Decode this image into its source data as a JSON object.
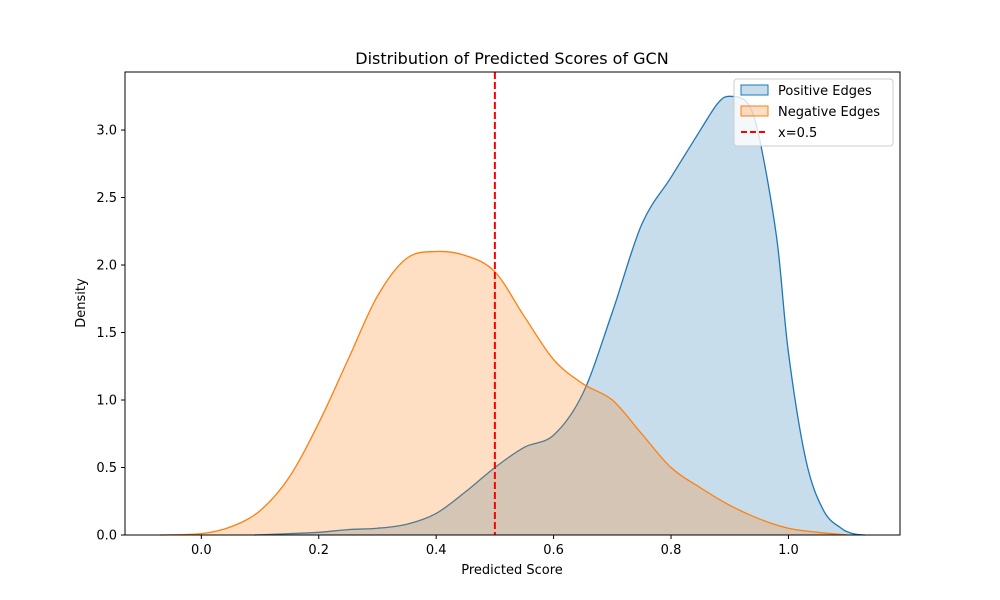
{
  "chart_data": {
    "type": "area",
    "title": "Distribution of Predicted Scores of GCN",
    "xlabel": "Predicted Score",
    "ylabel": "Density",
    "xlim": [
      -0.13,
      1.19
    ],
    "ylim": [
      0.0,
      3.43
    ],
    "xticks": [
      "0.0",
      "0.2",
      "0.4",
      "0.6",
      "0.8",
      "1.0"
    ],
    "yticks": [
      "0.0",
      "0.5",
      "1.0",
      "1.5",
      "2.0",
      "2.5",
      "3.0"
    ],
    "grid": false,
    "legend_position": "top-right",
    "colors": {
      "positive": "#1f77b4",
      "negative": "#ff7f0e",
      "threshold": "#ff0000"
    },
    "series": [
      {
        "name": "Positive Edges",
        "style": "filled-kde",
        "x": [
          0.09,
          0.15,
          0.2,
          0.25,
          0.3,
          0.35,
          0.4,
          0.45,
          0.5,
          0.55,
          0.6,
          0.65,
          0.7,
          0.75,
          0.8,
          0.85,
          0.88,
          0.9,
          0.93,
          0.95,
          0.98,
          1.0,
          1.03,
          1.06,
          1.09,
          1.11,
          1.13
        ],
        "y": [
          0.0,
          0.01,
          0.02,
          0.04,
          0.05,
          0.08,
          0.16,
          0.32,
          0.5,
          0.65,
          0.74,
          1.05,
          1.65,
          2.3,
          2.65,
          3.0,
          3.2,
          3.25,
          3.2,
          2.95,
          2.2,
          1.35,
          0.55,
          0.18,
          0.05,
          0.01,
          0.0
        ]
      },
      {
        "name": "Negative Edges",
        "style": "filled-kde",
        "x": [
          -0.07,
          0.0,
          0.05,
          0.1,
          0.15,
          0.2,
          0.25,
          0.3,
          0.35,
          0.4,
          0.45,
          0.5,
          0.55,
          0.6,
          0.65,
          0.7,
          0.75,
          0.8,
          0.85,
          0.9,
          0.95,
          1.0,
          1.05,
          1.1
        ],
        "y": [
          0.0,
          0.01,
          0.06,
          0.18,
          0.43,
          0.83,
          1.3,
          1.77,
          2.05,
          2.1,
          2.07,
          1.95,
          1.62,
          1.3,
          1.12,
          1.0,
          0.75,
          0.5,
          0.35,
          0.22,
          0.12,
          0.05,
          0.02,
          0.0
        ]
      },
      {
        "name": "x=0.5",
        "style": "vline-dashed",
        "x": 0.5
      }
    ]
  }
}
